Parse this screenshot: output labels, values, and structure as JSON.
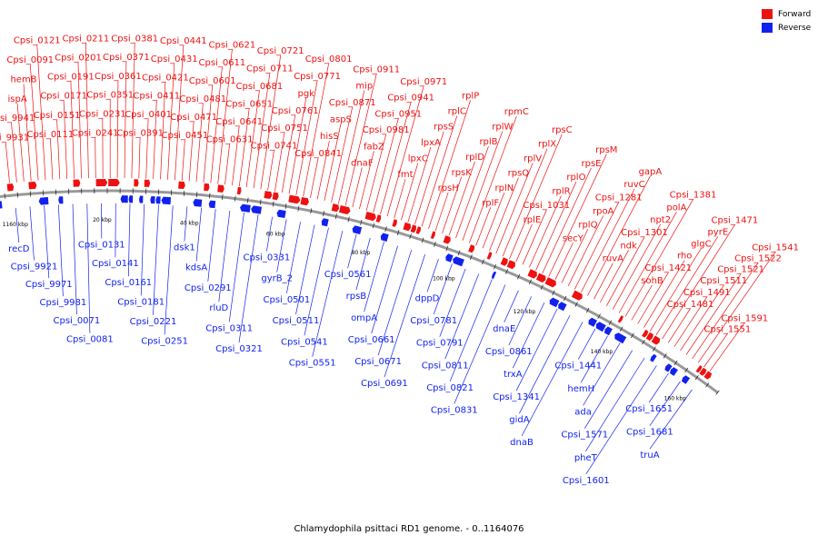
{
  "colors": {
    "forward": "#ee1111",
    "reverse": "#1122ee",
    "backbone": "#999999",
    "tick": "#000000",
    "label_line_f": "#ee1111",
    "label_line_r": "#1122ee"
  },
  "legend": {
    "forward": "Forward",
    "reverse": "Reverse"
  },
  "caption": "Chlamydophila psittaci RD1 genome. - 0..1164076",
  "scale_labels": [
    "1160 kbp",
    "20 kbp",
    "40 kbp",
    "60 kbp",
    "80 kbp",
    "100 kbp",
    "120 kbp",
    "140 kbp",
    "160 kbp"
  ],
  "forward_labels": [
    "Cpsi_9931",
    "Cpsi_9941",
    "ispA",
    "hemB",
    "Cpsi_0091",
    "Cpsi_0121",
    "Cpsi_0111",
    "Cpsi_0151",
    "Cpsi_0171",
    "Cpsi_0191",
    "Cpsi_0201",
    "Cpsi_0211",
    "Cpsi_0241",
    "Cpsi_0231",
    "Cpsi_0351",
    "Cpsi_0361",
    "Cpsi_0371",
    "Cpsi_0381",
    "Cpsi_0391",
    "Cpsi_0401",
    "Cpsi_0411",
    "Cpsi_0421",
    "Cpsi_0431",
    "Cpsi_0441",
    "Cpsi_0451",
    "Cpsi_0471",
    "Cpsi_0481",
    "Cpsi_0601",
    "Cpsi_0611",
    "Cpsi_0621",
    "Cpsi_0631",
    "Cpsi_0641",
    "Cpsi_0651",
    "Cpsi_0681",
    "Cpsi_0711",
    "Cpsi_0721",
    "Cpsi_0741",
    "Cpsi_0751",
    "Cpsi_0761",
    "pgk",
    "Cpsi_0771",
    "Cpsi_0801",
    "Cpsi_0841",
    "hisS",
    "aspS",
    "Cpsi_0871",
    "mip",
    "Cpsi_0911",
    "dnaF",
    "fabZ",
    "Cpsi_0981",
    "Cpsi_0951",
    "Cpsi_0941",
    "Cpsi_0971",
    "fmt",
    "lpxC",
    "lpxA",
    "rpsS",
    "rplC",
    "rplP",
    "rpsH",
    "rpsK",
    "rplD",
    "rplB",
    "rplW",
    "rpmC",
    "rplF",
    "rplN",
    "rpsQ",
    "rplV",
    "rplX",
    "rpsC",
    "rplE",
    "Cpsi_1031",
    "rplR",
    "rplO",
    "rpsE",
    "rpsM",
    "secY",
    "rplQ",
    "rpoA",
    "Cpsi_1281",
    "ruvC",
    "gapA",
    "ruvA",
    "ndk",
    "Cpsi_1301",
    "npt2",
    "polA",
    "Cpsi_1381",
    "sohB",
    "Cpsi_1421",
    "rho",
    "glgC",
    "pyrE",
    "Cpsi_1471",
    "Cpsi_1481",
    "Cpsi_1491",
    "Cpsi_1511",
    "Cpsi_1521",
    "Cpsi_1522",
    "Cpsi_1541",
    "Cpsi_1551",
    "Cpsi_1591"
  ],
  "reverse_labels": [
    "recD",
    "Cpsi_9921",
    "Cpsi_9971",
    "Cpsi_9981",
    "Cpsi_0071",
    "Cpsi_0081",
    "Cpsi_0131",
    "Cpsi_0141",
    "Cpsi_0161",
    "Cpsi_0181",
    "Cpsi_0221",
    "Cpsi_0251",
    "dsk1",
    "kdsA",
    "Cpsi_0291",
    "rluD",
    "Cpsi_0311",
    "Cpsi_0321",
    "Cpsi_0331",
    "gyrB_2",
    "Cpsi_0501",
    "Cpsi_0511",
    "Cpsi_0541",
    "Cpsi_0551",
    "Cpsi_0561",
    "rpsB",
    "ompA",
    "Cpsi_0661",
    "Cpsi_0671",
    "Cpsi_0691",
    "dppD",
    "Cpsi_0781",
    "Cpsi_0791",
    "Cpsi_0811",
    "Cpsi_0821",
    "Cpsi_0831",
    "dnaE",
    "Cpsi_0861",
    "trxA",
    "Cpsi_1341",
    "gidA",
    "dnaB",
    "Cpsi_1441",
    "hemH",
    "ada",
    "Cpsi_1571",
    "pheT",
    "Cpsi_1601",
    "Cpsi_1651",
    "Cpsi_1681",
    "truA"
  ]
}
